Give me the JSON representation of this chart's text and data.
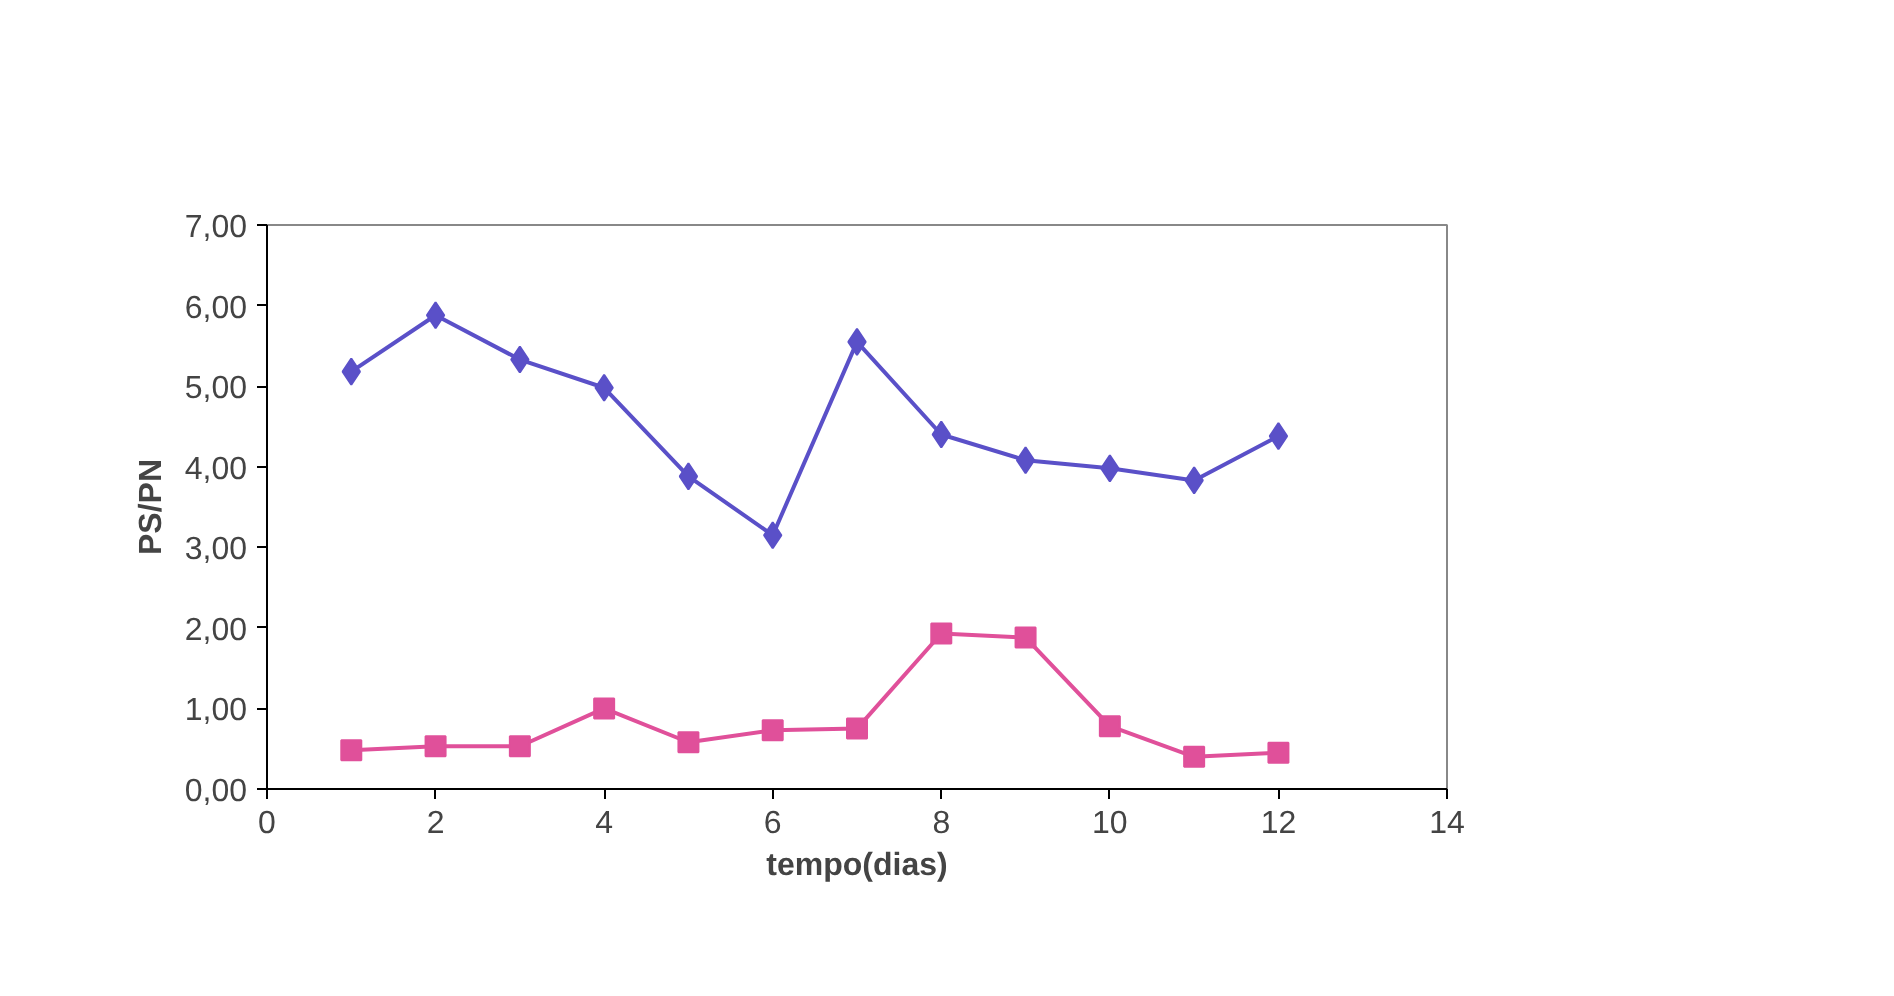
{
  "chart_data": {
    "type": "line",
    "xlabel": "tempo(dias)",
    "ylabel": "PS/PN",
    "x": [
      1,
      2,
      3,
      4,
      5,
      6,
      7,
      8,
      9,
      10,
      11,
      12
    ],
    "series": [
      {
        "color": "#5a50c8",
        "marker": "diamond",
        "values": [
          5.18,
          5.88,
          5.33,
          4.98,
          3.88,
          3.15,
          5.55,
          4.4,
          4.08,
          3.98,
          3.83,
          4.38
        ]
      },
      {
        "color": "#e0509a",
        "marker": "square",
        "values": [
          0.48,
          0.53,
          0.53,
          1.0,
          0.58,
          0.73,
          0.75,
          1.93,
          1.88,
          0.78,
          0.4,
          0.45
        ]
      }
    ],
    "xlim": [
      0,
      14
    ],
    "xticks": [
      0,
      2,
      4,
      6,
      8,
      10,
      12,
      14
    ],
    "ylim": [
      0,
      7
    ],
    "yticks": [
      {
        "value": 0,
        "label": "0,00"
      },
      {
        "value": 1,
        "label": "1,00"
      },
      {
        "value": 2,
        "label": "2,00"
      },
      {
        "value": 3,
        "label": "3,00"
      },
      {
        "value": 4,
        "label": "4,00"
      },
      {
        "value": 5,
        "label": "5,00"
      },
      {
        "value": 6,
        "label": "6,00"
      },
      {
        "value": 7,
        "label": "7,00"
      }
    ],
    "grid": false,
    "line_style": "solid"
  }
}
